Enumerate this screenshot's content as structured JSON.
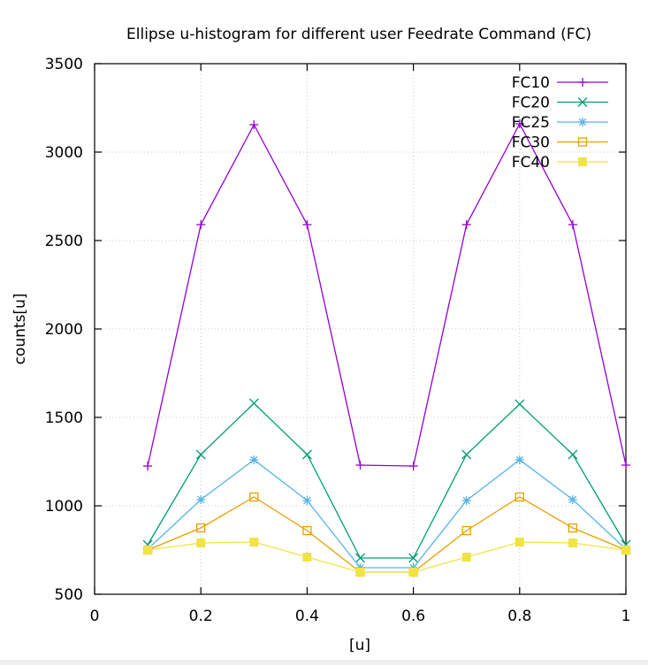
{
  "chart_data": {
    "type": "line",
    "title": "Ellipse u-histogram for different user Feedrate Command (FC)",
    "xlabel": "[u]",
    "ylabel": "counts[u]",
    "xlim": [
      0,
      1
    ],
    "ylim": [
      500,
      3500
    ],
    "x_ticks": [
      0,
      0.2,
      0.4,
      0.6,
      0.8,
      1
    ],
    "x_tick_labels": [
      "0",
      "0.2",
      "0.4",
      "0.6",
      "0.8",
      "1"
    ],
    "y_ticks": [
      500,
      1000,
      1500,
      2000,
      2500,
      3000,
      3500
    ],
    "y_tick_labels": [
      "500",
      "1000",
      "1500",
      "2000",
      "2500",
      "3000",
      "3500"
    ],
    "grid": true,
    "legend_position": "top-right",
    "x": [
      0.1,
      0.2,
      0.3,
      0.4,
      0.5,
      0.6,
      0.7,
      0.8,
      0.9,
      1.0
    ],
    "series": [
      {
        "name": "FC10",
        "color": "#9400d3",
        "marker": "plus",
        "values": [
          1225,
          2590,
          3155,
          2590,
          1230,
          1225,
          2590,
          3160,
          2590,
          1230
        ]
      },
      {
        "name": "FC20",
        "color": "#009e73",
        "marker": "cross",
        "values": [
          780,
          1290,
          1580,
          1290,
          705,
          705,
          1290,
          1575,
          1290,
          780
        ]
      },
      {
        "name": "FC25",
        "color": "#56b4e9",
        "marker": "star",
        "values": [
          755,
          1035,
          1260,
          1030,
          650,
          650,
          1030,
          1260,
          1035,
          755
        ]
      },
      {
        "name": "FC30",
        "color": "#e69f00",
        "marker": "square",
        "values": [
          750,
          875,
          1050,
          860,
          625,
          625,
          860,
          1050,
          875,
          750
        ]
      },
      {
        "name": "FC40",
        "color": "#f0e442",
        "marker": "filled-square",
        "values": [
          750,
          790,
          795,
          710,
          625,
          625,
          710,
          795,
          790,
          750
        ]
      }
    ]
  }
}
